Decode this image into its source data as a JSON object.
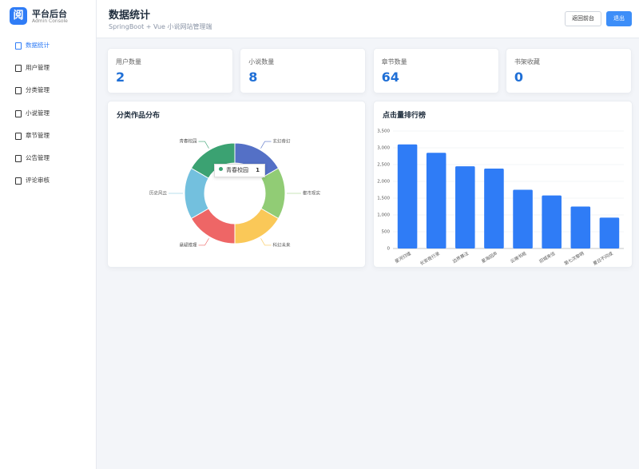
{
  "brand": {
    "logo": "阅",
    "title": "平台后台",
    "subtitle": "Admin Console"
  },
  "menu": [
    "数据统计",
    "用户管理",
    "分类管理",
    "小说管理",
    "章节管理",
    "公告管理",
    "评论审核"
  ],
  "header": {
    "title": "数据统计",
    "subtitle": "SpringBoot + Vue 小说网站管理端",
    "buttons": [
      "返回前台",
      "退出"
    ]
  },
  "stats": [
    {
      "label": "用户数量",
      "value": 2
    },
    {
      "label": "小说数量",
      "value": 8
    },
    {
      "label": "章节数量",
      "value": 64
    },
    {
      "label": "书架收藏",
      "value": 0
    }
  ],
  "chart_data": [
    {
      "type": "pie",
      "title": "分类作品分布",
      "categories": [
        "玄幻奇幻",
        "都市现实",
        "科幻未来",
        "悬疑推理",
        "历史风云",
        "青春校园"
      ],
      "values": [
        1,
        1,
        1,
        1,
        1,
        1
      ],
      "colors": [
        "#5470c6",
        "#91cc75",
        "#fac858",
        "#ee6666",
        "#73c0de",
        "#3ba272"
      ]
    },
    {
      "type": "bar",
      "title": "点击量排行榜",
      "categories": [
        "星河归墟",
        "长安夜行录",
        "边界算法",
        "星海回声",
        "云端书局",
        "旧城来信",
        "第七次黎明",
        "夏日不问成"
      ],
      "values": [
        3100,
        2850,
        2450,
        2380,
        1750,
        1580,
        1250,
        920
      ],
      "color": "#2f7cf6",
      "ylim": [
        0,
        3500
      ],
      "yticks": [
        0,
        500,
        {
          "value": 1000,
          "label": "1,000"
        },
        {
          "value": 1500,
          "label": "1,500"
        },
        {
          "value": 2000,
          "label": "2,000"
        },
        {
          "value": 2500,
          "label": "2,500"
        },
        {
          "value": 3000,
          "label": "3,000"
        },
        {
          "value": 3500,
          "label": "3,500"
        }
      ],
      "grid": true
    }
  ]
}
